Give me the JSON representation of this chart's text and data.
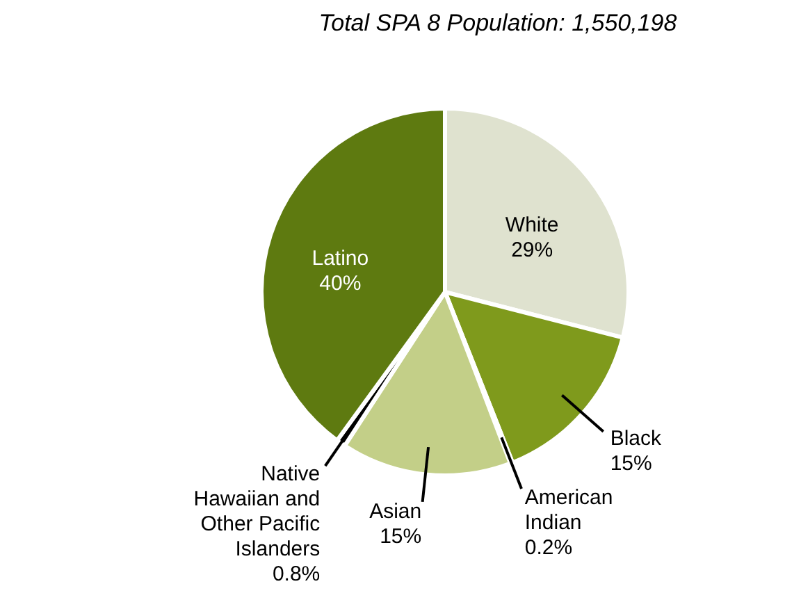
{
  "chart_data": {
    "type": "pie",
    "title": "Total SPA 8 Population: 1,550,198",
    "categories": [
      "White",
      "Black",
      "American Indian",
      "Asian",
      "Native Hawaiian and Other Pacific Islanders",
      "Latino"
    ],
    "values": [
      29,
      15,
      0.2,
      15,
      0.8,
      40
    ],
    "value_labels": [
      "29%",
      "15%",
      "0.2%",
      "15%",
      "0.8%",
      "40%"
    ],
    "colors": [
      "#dfe2cf",
      "#7f9a1c",
      "#3a4a0a",
      "#c3cf88",
      "#000000",
      "#5e7a10"
    ]
  }
}
